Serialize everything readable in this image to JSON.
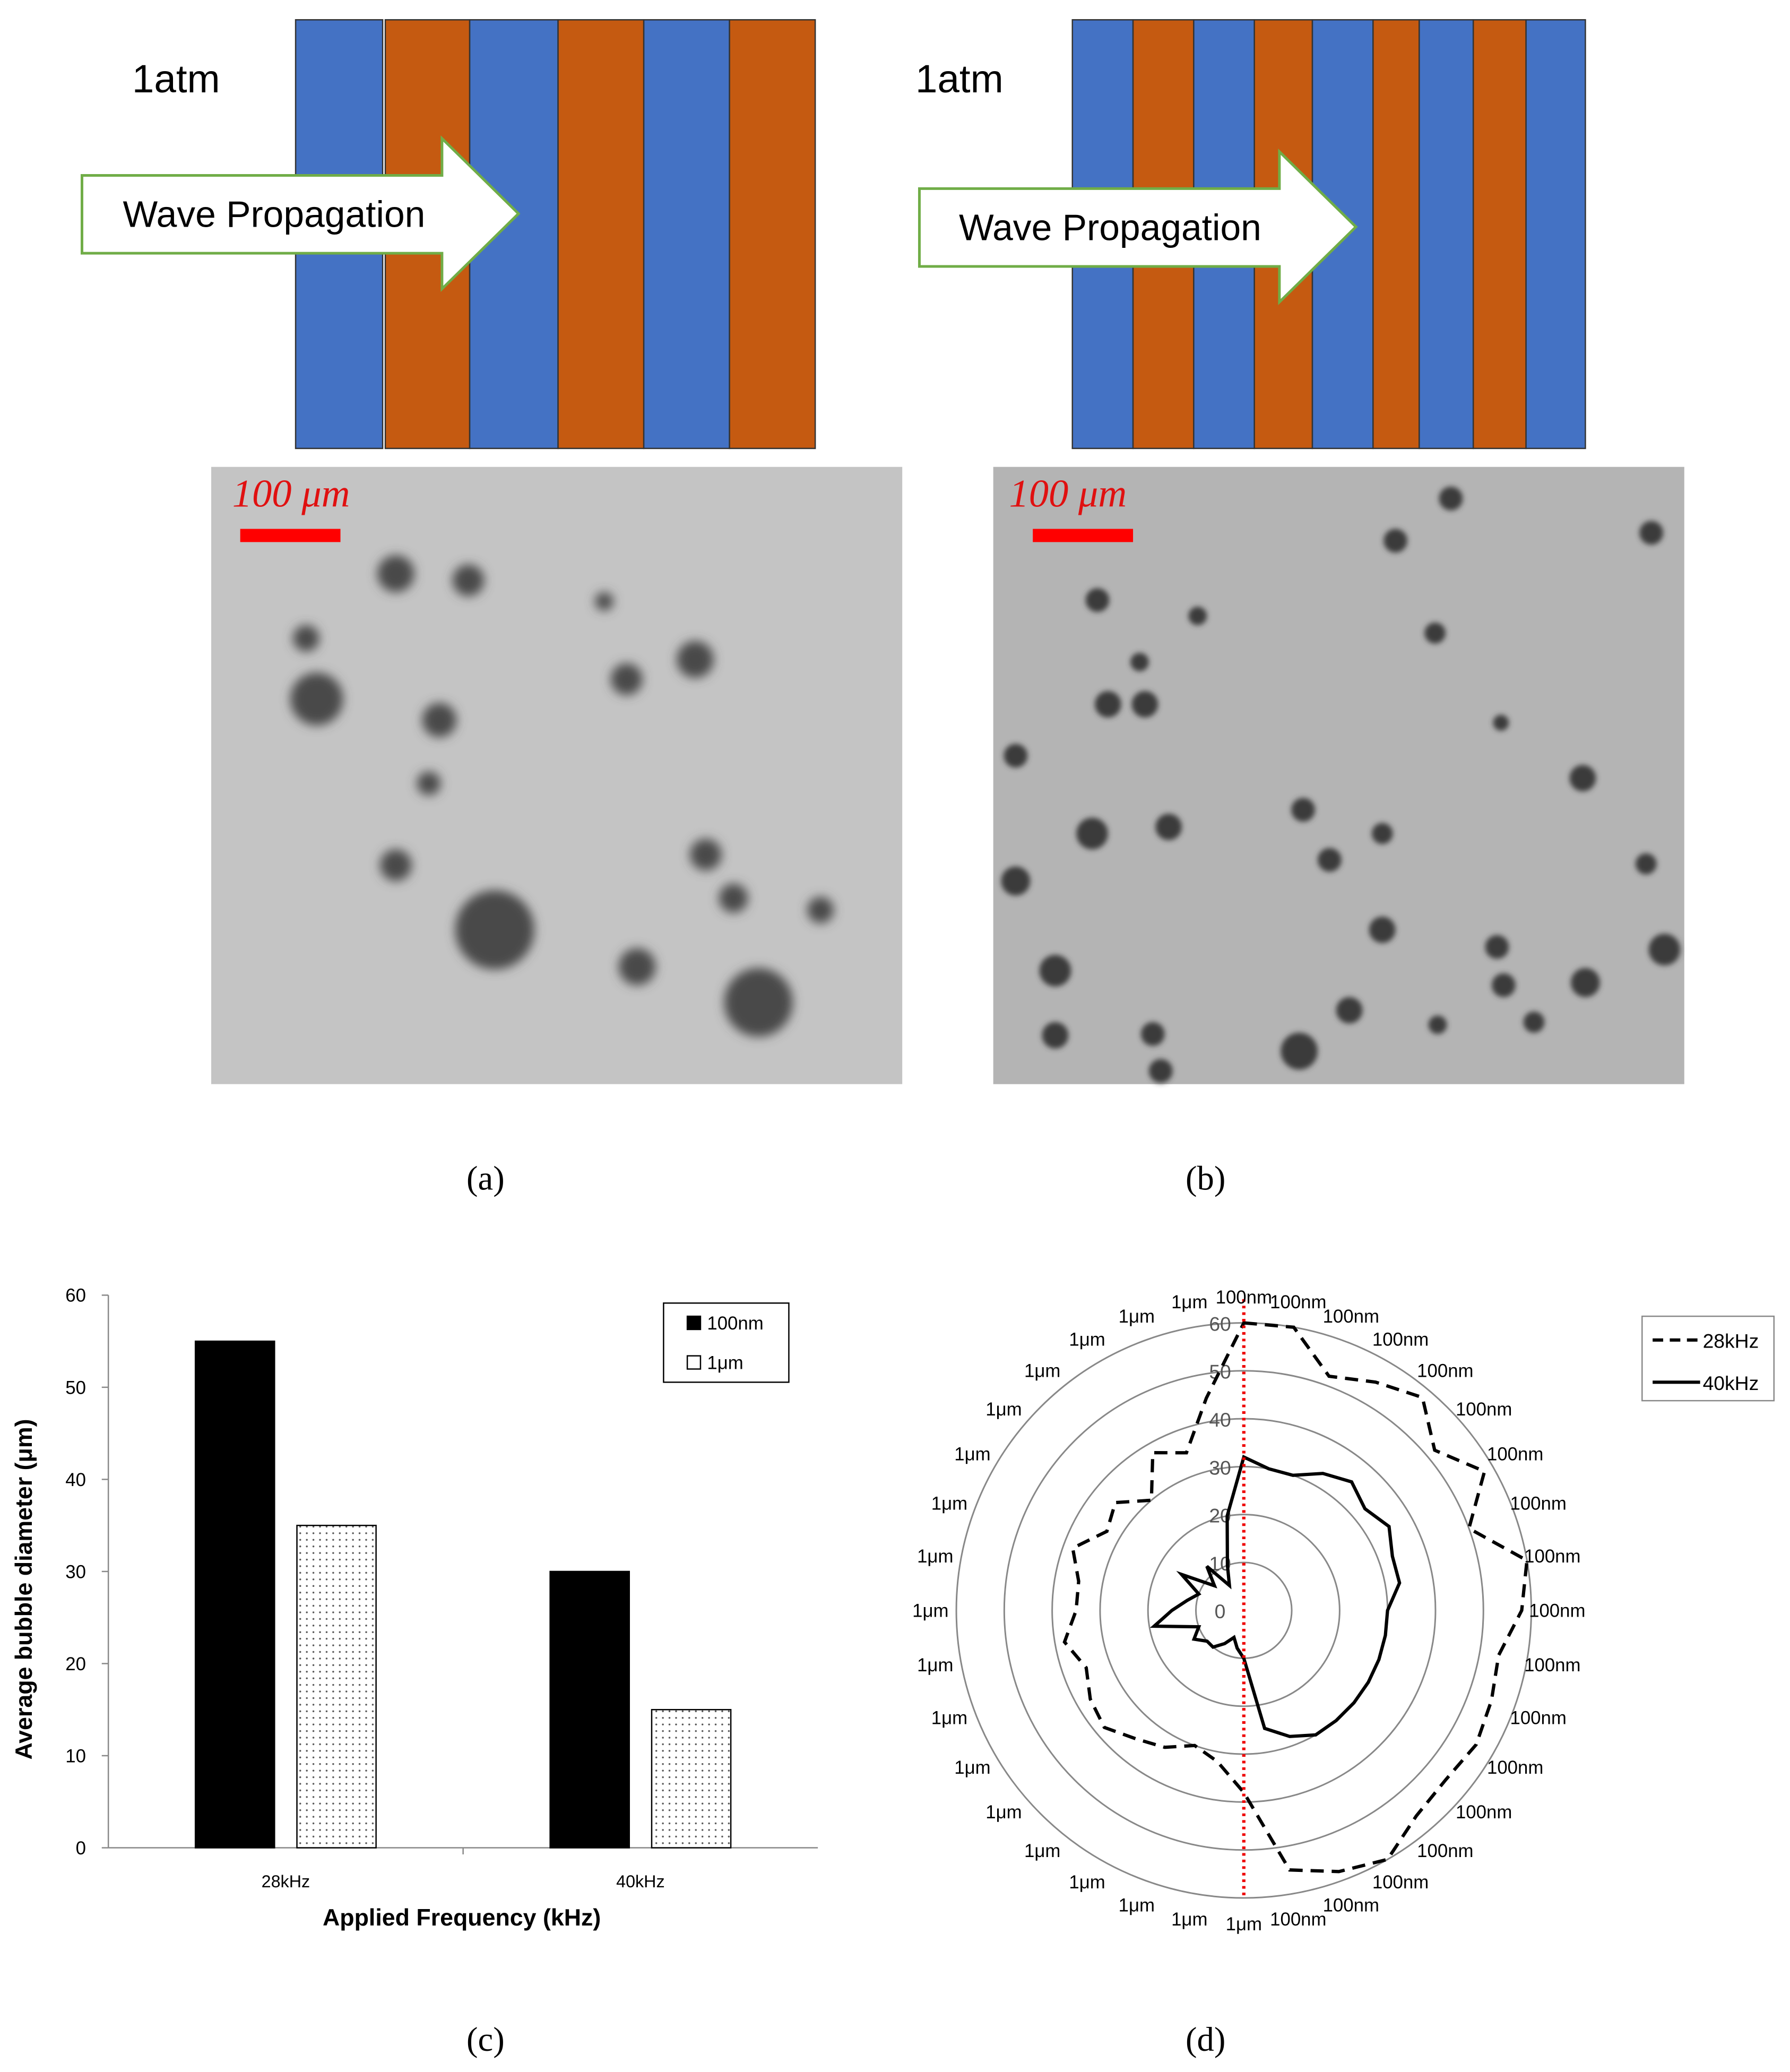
{
  "panels": {
    "a": {
      "label": "(a)",
      "pressure": "1atm",
      "arrow": "Wave Propagation",
      "scale_bar": "100 μm"
    },
    "b": {
      "label": "(b)",
      "pressure": "1atm",
      "arrow": "Wave Propagation",
      "scale_bar": "100 μm"
    },
    "c": {
      "label": "(c)"
    },
    "d": {
      "label": "(d)"
    }
  },
  "chart_data": [
    {
      "type": "bar",
      "x_label": "Applied Frequency (kHz)",
      "y_label": "Average bubble diameter (μm)",
      "categories": [
        "28kHz",
        "40kHz"
      ],
      "series": [
        {
          "name": "100nm",
          "color": "#000000",
          "fill": "solid",
          "values": [
            55,
            30
          ]
        },
        {
          "name": "1μm",
          "color": "#ffffff",
          "fill": "dotted",
          "values": [
            35,
            15
          ]
        }
      ],
      "ylim": [
        0,
        60
      ],
      "yticks": [
        0,
        10,
        20,
        30,
        40,
        50,
        60
      ],
      "legend": "top-right"
    },
    {
      "type": "radar",
      "categories": [
        "100nm",
        "100nm",
        "100nm",
        "100nm",
        "100nm",
        "100nm",
        "100nm",
        "100nm",
        "100nm",
        "100nm",
        "100nm",
        "100nm",
        "100nm",
        "100nm",
        "100nm",
        "100nm",
        "100nm",
        "100nm",
        "1μm",
        "1μm",
        "1μm",
        "1μm",
        "1μm",
        "1μm",
        "1μm",
        "1μm",
        "1μm",
        "1μm",
        "1μm",
        "1μm",
        "1μm",
        "1μm",
        "1μm",
        "1μm",
        "1μm",
        "1μm"
      ],
      "series": [
        {
          "name": "28kHz",
          "color": "#000000",
          "line_style": "dashed",
          "values": [
            60,
            60,
            52,
            55,
            58,
            52,
            58,
            50,
            60,
            58,
            54,
            55,
            56,
            55,
            56,
            60,
            58,
            55,
            38,
            32,
            30,
            33,
            35,
            38,
            37,
            35,
            38,
            35,
            35,
            38,
            33,
            35,
            30,
            38,
            35,
            45
          ]
        },
        {
          "name": "40kHz",
          "color": "#000000",
          "line_style": "solid",
          "values": [
            32,
            30,
            30,
            33,
            35,
            33,
            35,
            33,
            33,
            30,
            30,
            30,
            30,
            30,
            30,
            30,
            28,
            25,
            10,
            8,
            6,
            8,
            10,
            10,
            12,
            10,
            19,
            15,
            12,
            10,
            15,
            8,
            12,
            6,
            10,
            20
          ]
        }
      ],
      "rlim": [
        0,
        60
      ],
      "rticks": [
        0,
        10,
        20,
        30,
        40,
        50,
        60
      ],
      "legend": "top-right"
    }
  ]
}
